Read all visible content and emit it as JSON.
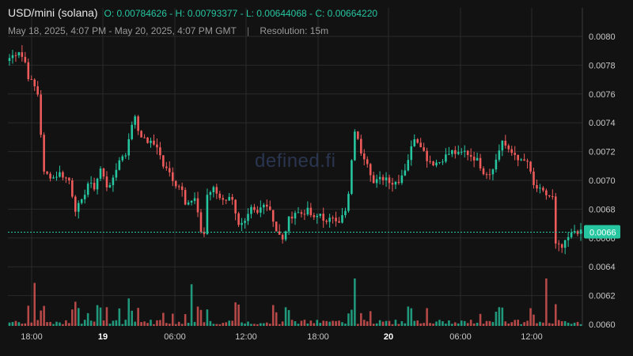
{
  "header": {
    "pair": "USD/mini (solana)",
    "ohlc": "O: 0.00784626 - H: 0.00793377 - L: 0.00644068 - C: 0.00664220",
    "range": "May 18, 2025, 4:07 PM - May 20, 2025, 4:07 PM GMT",
    "separator": "|",
    "resolution": "Resolution: 15m"
  },
  "watermark": "defined.fi",
  "colors": {
    "background": "#121212",
    "up": "#26c6a0",
    "down": "#ef5b5b",
    "grid": "#2a2a2a",
    "price_label_bg": "#26c6a0"
  },
  "chart_data": {
    "type": "candlestick",
    "y_ticks": [
      "0.0080",
      "0.0078",
      "0.0076",
      "0.0074",
      "0.0072",
      "0.0070",
      "0.0068",
      "0.0066",
      "0.0064",
      "0.0062",
      "0.0060"
    ],
    "x_ticks": [
      "18:00",
      "19",
      "06:00",
      "12:00",
      "18:00",
      "20",
      "06:00",
      "12:00"
    ],
    "bold_x_ticks": [
      "19",
      "20"
    ],
    "ylim": [
      0.006,
      0.0081
    ],
    "current_price_label": "0.0066",
    "current_price": 0.00664,
    "close_path": [
      [
        0,
        0.00785
      ],
      [
        3,
        0.0079
      ],
      [
        5,
        0.00782
      ],
      [
        6,
        0.00772
      ],
      [
        8,
        0.00765
      ],
      [
        9,
        0.0076
      ],
      [
        11,
        0.00705
      ],
      [
        14,
        0.00702
      ],
      [
        16,
        0.00705
      ],
      [
        19,
        0.007
      ],
      [
        21,
        0.0068
      ],
      [
        23,
        0.00685
      ],
      [
        25,
        0.00698
      ],
      [
        27,
        0.00695
      ],
      [
        29,
        0.00708
      ],
      [
        31,
        0.00696
      ],
      [
        33,
        0.007
      ],
      [
        35,
        0.00715
      ],
      [
        37,
        0.00718
      ],
      [
        38,
        0.0073
      ],
      [
        40,
        0.00745
      ],
      [
        41,
        0.00735
      ],
      [
        43,
        0.00728
      ],
      [
        45,
        0.00726
      ],
      [
        47,
        0.00724
      ],
      [
        49,
        0.0071
      ],
      [
        51,
        0.00705
      ],
      [
        53,
        0.00697
      ],
      [
        55,
        0.00695
      ],
      [
        56,
        0.00685
      ],
      [
        58,
        0.00685
      ],
      [
        59,
        0.00687
      ],
      [
        61,
        0.00665
      ],
      [
        62,
        0.00663
      ],
      [
        63,
        0.0069
      ],
      [
        65,
        0.00694
      ],
      [
        67,
        0.00688
      ],
      [
        69,
        0.00687
      ],
      [
        71,
        0.00688
      ],
      [
        73,
        0.00668
      ],
      [
        75,
        0.0067
      ],
      [
        77,
        0.0068
      ],
      [
        79,
        0.00677
      ],
      [
        81,
        0.00685
      ],
      [
        83,
        0.0068
      ],
      [
        85,
        0.00665
      ],
      [
        87,
        0.00658
      ],
      [
        89,
        0.00673
      ],
      [
        91,
        0.00678
      ],
      [
        93,
        0.00677
      ],
      [
        95,
        0.00679
      ],
      [
        97,
        0.00673
      ],
      [
        99,
        0.00677
      ],
      [
        101,
        0.0067
      ],
      [
        103,
        0.00675
      ],
      [
        105,
        0.00672
      ],
      [
        107,
        0.00678
      ],
      [
        108,
        0.0069
      ],
      [
        110,
        0.00735
      ],
      [
        112,
        0.0072
      ],
      [
        114,
        0.00713
      ],
      [
        116,
        0.00698
      ],
      [
        118,
        0.00701
      ],
      [
        120,
        0.00702
      ],
      [
        122,
        0.00698
      ],
      [
        124,
        0.007
      ],
      [
        126,
        0.00708
      ],
      [
        127,
        0.00715
      ],
      [
        129,
        0.0073
      ],
      [
        131,
        0.00725
      ],
      [
        133,
        0.00715
      ],
      [
        135,
        0.00712
      ],
      [
        137,
        0.00713
      ],
      [
        139,
        0.00717
      ],
      [
        141,
        0.0072
      ],
      [
        143,
        0.00718
      ],
      [
        145,
        0.0072
      ],
      [
        147,
        0.00717
      ],
      [
        149,
        0.00714
      ],
      [
        151,
        0.00706
      ],
      [
        153,
        0.00705
      ],
      [
        155,
        0.00714
      ],
      [
        157,
        0.00728
      ],
      [
        159,
        0.0072
      ],
      [
        161,
        0.00718
      ],
      [
        163,
        0.00713
      ],
      [
        165,
        0.00713
      ],
      [
        167,
        0.00696
      ],
      [
        169,
        0.00693
      ],
      [
        171,
        0.0069
      ],
      [
        173,
        0.00688
      ],
      [
        174,
        0.00655
      ],
      [
        176,
        0.00653
      ],
      [
        178,
        0.0066
      ],
      [
        180,
        0.00665
      ],
      [
        182,
        0.00664
      ]
    ],
    "volume_spikes": [
      [
        8,
        0.9
      ],
      [
        58,
        0.87
      ],
      [
        110,
        1.0
      ],
      [
        171,
        1.0
      ],
      [
        38,
        0.55
      ],
      [
        20,
        0.3
      ],
      [
        88,
        0.35
      ],
      [
        150,
        0.2
      ]
    ]
  }
}
